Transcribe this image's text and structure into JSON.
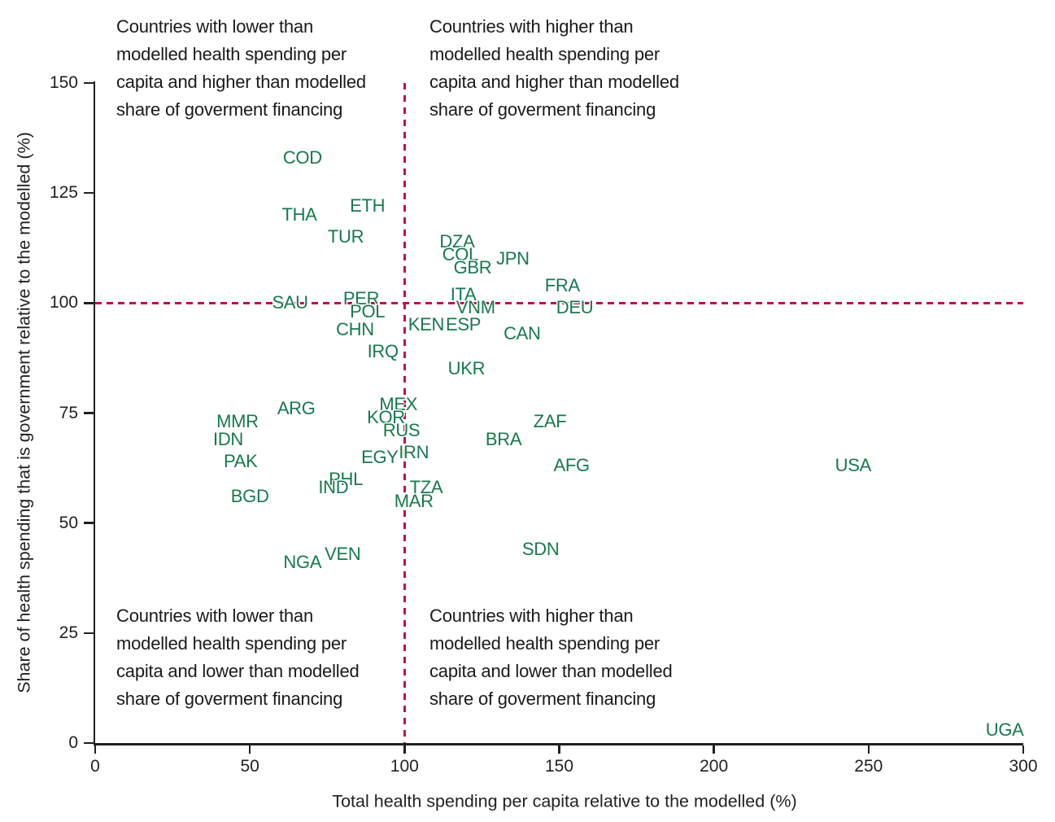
{
  "figure": {
    "point_label_color": "#17794C",
    "reference_line_color": "#C10D4E",
    "axis_color": "#231f20"
  },
  "chart_data": {
    "type": "scatter",
    "point_style": "country-iso3-text-labels",
    "title": "",
    "xlabel": "Total health spending per capita relative to the modelled (%)",
    "ylabel": "Share of health spending that is government relative to the modelled (%)",
    "xlim": [
      0,
      300
    ],
    "ylim": [
      0,
      150
    ],
    "x_ticks": [
      0,
      50,
      100,
      150,
      200,
      250,
      300
    ],
    "y_ticks": [
      0,
      25,
      50,
      75,
      100,
      125,
      150
    ],
    "grid": false,
    "legend": null,
    "reference_lines": {
      "vertical_x": 100,
      "horizontal_y": 100,
      "style": "dashed"
    },
    "annotations": {
      "top_left": "Countries with lower than\nmodelled health spending per\ncapita and higher than modelled\nshare of goverment financing",
      "top_right": "Countries with higher than\nmodelled health spending per\ncapita and higher than modelled\nshare of goverment financing",
      "bottom_left": "Countries with lower than\nmodelled health spending per\ncapita and lower than modelled\nshare of goverment financing",
      "bottom_right": "Countries with higher than\nmodelled health spending per\ncapita and lower than modelled\nshare of goverment financing"
    },
    "points": [
      {
        "label": "COD",
        "x": 67,
        "y": 133
      },
      {
        "label": "THA",
        "x": 66,
        "y": 120
      },
      {
        "label": "ETH",
        "x": 88,
        "y": 122
      },
      {
        "label": "TUR",
        "x": 81,
        "y": 115
      },
      {
        "label": "DZA",
        "x": 117,
        "y": 114
      },
      {
        "label": "COL",
        "x": 118,
        "y": 111
      },
      {
        "label": "GBR",
        "x": 122,
        "y": 108
      },
      {
        "label": "JPN",
        "x": 135,
        "y": 110
      },
      {
        "label": "FRA",
        "x": 151,
        "y": 104
      },
      {
        "label": "SAU",
        "x": 63,
        "y": 100
      },
      {
        "label": "PER",
        "x": 86,
        "y": 101
      },
      {
        "label": "POL",
        "x": 88,
        "y": 98
      },
      {
        "label": "CHN",
        "x": 84,
        "y": 94
      },
      {
        "label": "IRQ",
        "x": 93,
        "y": 89
      },
      {
        "label": "KEN",
        "x": 107,
        "y": 95
      },
      {
        "label": "ITA",
        "x": 119,
        "y": 102
      },
      {
        "label": "VNM",
        "x": 123,
        "y": 99
      },
      {
        "label": "ESP",
        "x": 119,
        "y": 95
      },
      {
        "label": "DEU",
        "x": 155,
        "y": 99
      },
      {
        "label": "CAN",
        "x": 138,
        "y": 93
      },
      {
        "label": "UKR",
        "x": 120,
        "y": 85
      },
      {
        "label": "ARG",
        "x": 65,
        "y": 76
      },
      {
        "label": "MEX",
        "x": 98,
        "y": 77
      },
      {
        "label": "KOR",
        "x": 94,
        "y": 74
      },
      {
        "label": "RUS",
        "x": 99,
        "y": 71
      },
      {
        "label": "MMR",
        "x": 46,
        "y": 73
      },
      {
        "label": "IDN",
        "x": 43,
        "y": 69
      },
      {
        "label": "PAK",
        "x": 47,
        "y": 64
      },
      {
        "label": "EGY",
        "x": 92,
        "y": 65
      },
      {
        "label": "IRN",
        "x": 103,
        "y": 66
      },
      {
        "label": "PHL",
        "x": 81,
        "y": 60
      },
      {
        "label": "IND",
        "x": 77,
        "y": 58
      },
      {
        "label": "BGD",
        "x": 50,
        "y": 56
      },
      {
        "label": "TZA",
        "x": 107,
        "y": 58
      },
      {
        "label": "MAR",
        "x": 103,
        "y": 55
      },
      {
        "label": "NGA",
        "x": 67,
        "y": 41
      },
      {
        "label": "VEN",
        "x": 80,
        "y": 43
      },
      {
        "label": "BRA",
        "x": 132,
        "y": 69
      },
      {
        "label": "ZAF",
        "x": 147,
        "y": 73
      },
      {
        "label": "AFG",
        "x": 154,
        "y": 63
      },
      {
        "label": "SDN",
        "x": 144,
        "y": 44
      },
      {
        "label": "USA",
        "x": 245,
        "y": 63
      },
      {
        "label": "UGA",
        "x": 294,
        "y": 3
      }
    ]
  }
}
